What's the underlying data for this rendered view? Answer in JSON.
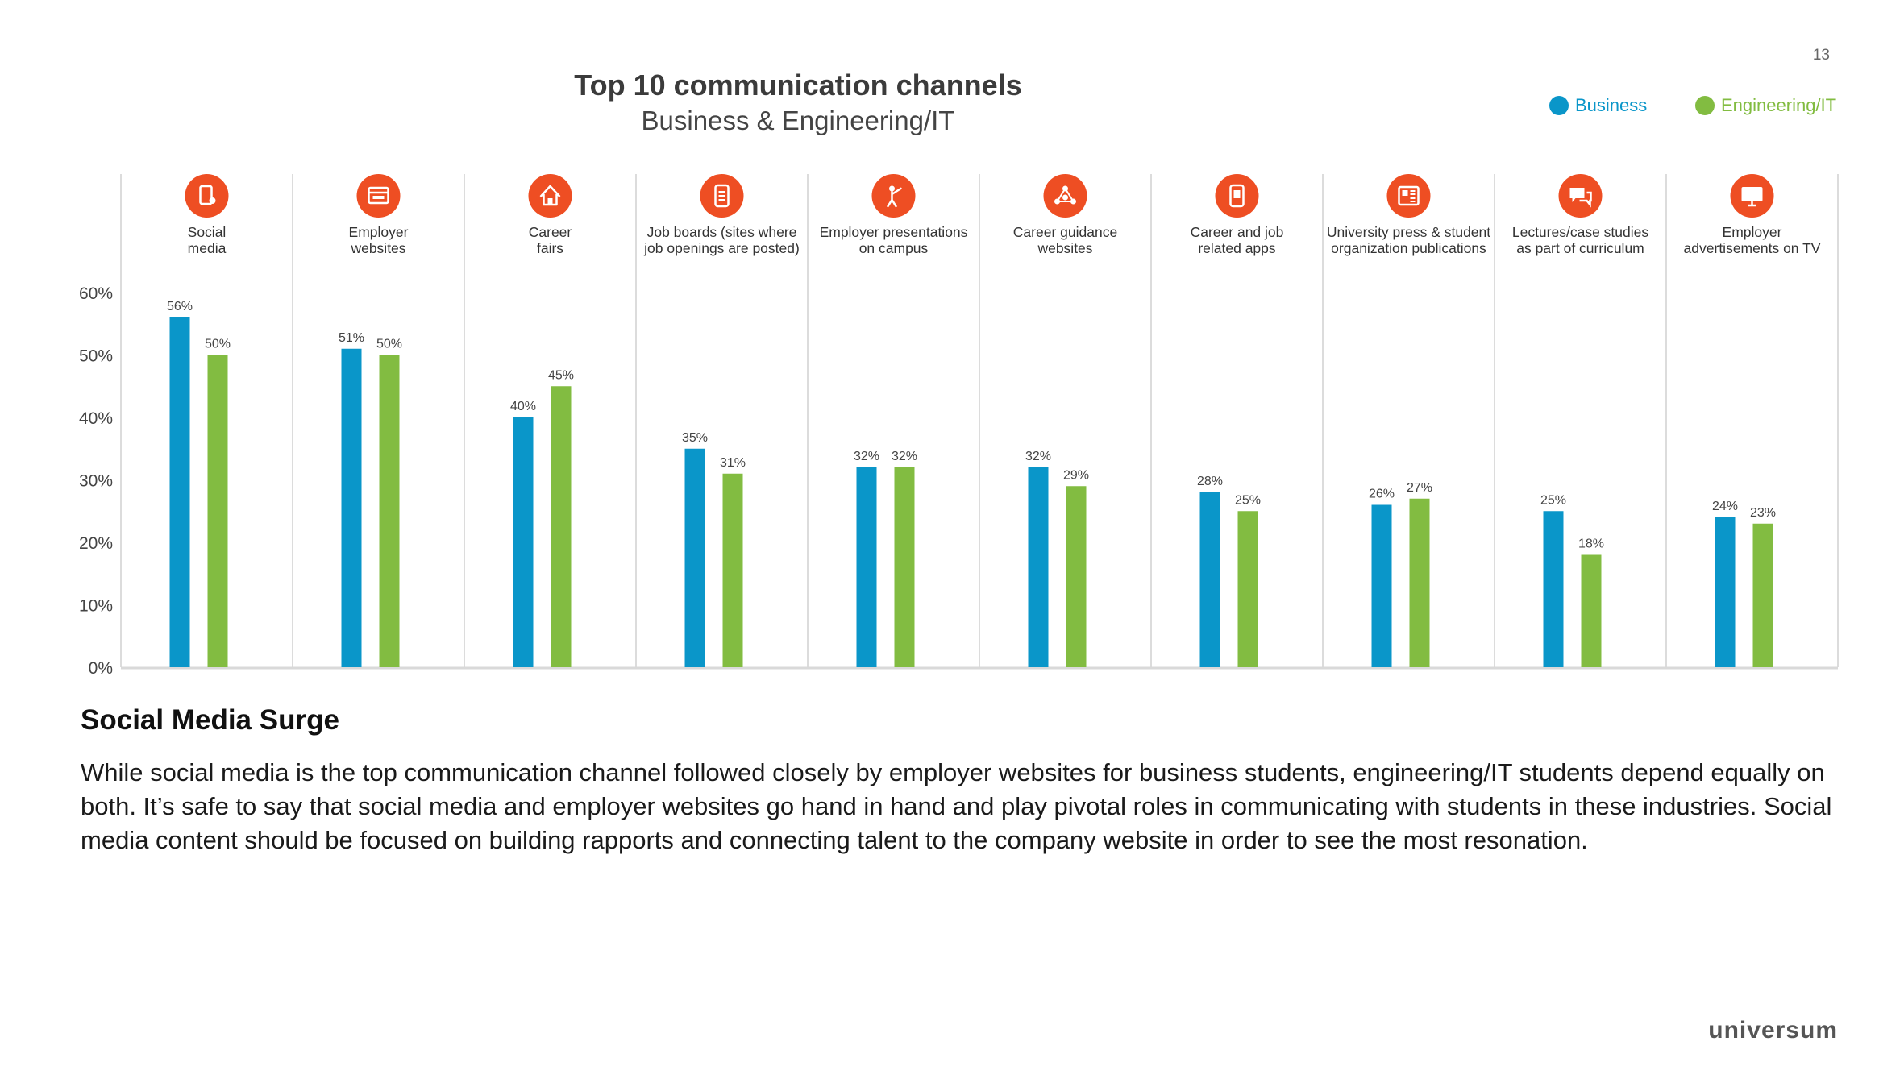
{
  "page": {
    "number": "13"
  },
  "legend": {
    "business": {
      "label": "Business",
      "color": "#0a96c9"
    },
    "engineering": {
      "label": "Engineering/IT",
      "color": "#82bc41"
    }
  },
  "chart_data": {
    "type": "bar",
    "title": "Top 10 communication channels",
    "subtitle": "Business & Engineering/IT",
    "xlabel": "",
    "ylabel": "",
    "ylim": [
      0,
      60
    ],
    "yticks": [
      "0%",
      "10%",
      "20%",
      "30%",
      "40%",
      "50%",
      "60%"
    ],
    "grid": false,
    "legend_position": "top-right",
    "categories": [
      {
        "line1": "Social",
        "line2": "media",
        "icon": "smartphone-touch-icon"
      },
      {
        "line1": "Employer",
        "line2": "websites",
        "icon": "browser-window-icon"
      },
      {
        "line1": "Career",
        "line2": "fairs",
        "icon": "house-icon"
      },
      {
        "line1": "Job boards (sites where",
        "line2": "job openings are posted)",
        "icon": "mobile-list-icon"
      },
      {
        "line1": "Employer presentations",
        "line2": "on campus",
        "icon": "presenter-icon"
      },
      {
        "line1": "Career guidance",
        "line2": "websites",
        "icon": "network-icon"
      },
      {
        "line1": "Career and job",
        "line2": "related apps",
        "icon": "phone-app-icon"
      },
      {
        "line1": "University press & student",
        "line2": "organization publications",
        "icon": "newspaper-icon"
      },
      {
        "line1": "Lectures/case studies",
        "line2": "as part of curriculum",
        "icon": "speech-bubbles-icon"
      },
      {
        "line1": "Employer",
        "line2": "advertisements on TV",
        "icon": "tv-monitor-icon"
      }
    ],
    "series": [
      {
        "name": "Business",
        "values": [
          56,
          51,
          40,
          35,
          32,
          32,
          28,
          26,
          25,
          24
        ],
        "labels": [
          "56%",
          "51%",
          "40%",
          "35%",
          "32%",
          "32%",
          "28%",
          "26%",
          "25%",
          "24%"
        ]
      },
      {
        "name": "Engineering/IT",
        "values": [
          50,
          50,
          45,
          31,
          32,
          29,
          25,
          27,
          18,
          23
        ],
        "labels": [
          "50%",
          "50%",
          "45%",
          "31%",
          "32%",
          "29%",
          "25%",
          "27%",
          "18%",
          "23%"
        ]
      }
    ]
  },
  "article": {
    "heading": "Social Media Surge",
    "body": "While social media is the top communication channel followed closely by employer websites for business students, engineering/IT students depend equally on both. It’s safe to say that social media and employer websites go hand in hand and play pivotal roles in communicating with students in these industries. Social media content should be focused on building rapports and connecting talent to the company website in order to see the most resonation."
  },
  "brand": "universum",
  "colors": {
    "icon": "#ee4e23",
    "axis": "#d9d9d9",
    "separator": "#dcdcdc"
  }
}
